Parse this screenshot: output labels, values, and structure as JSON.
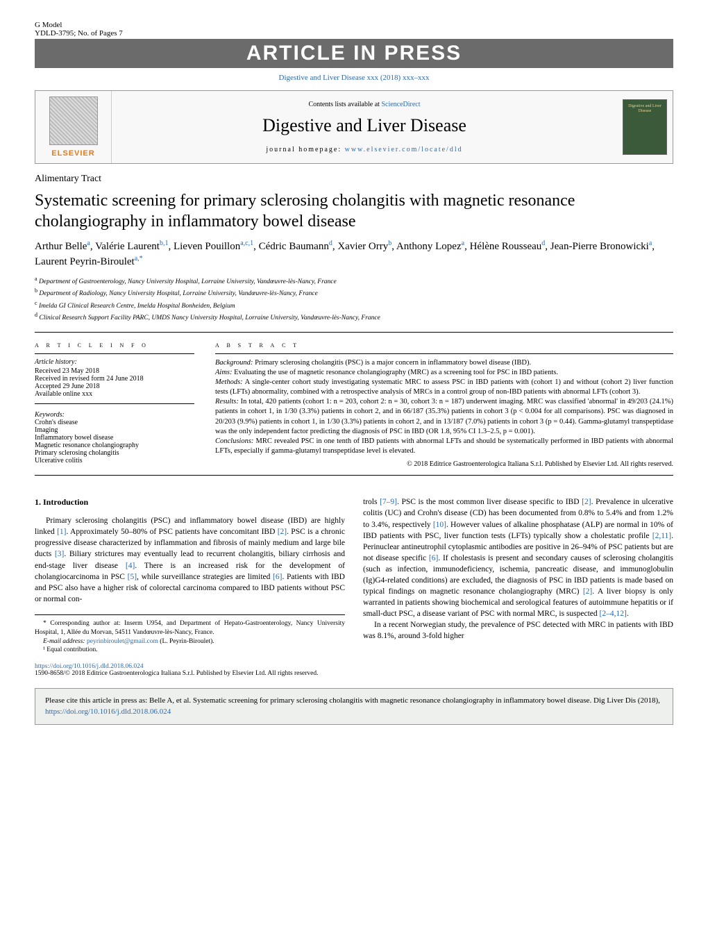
{
  "header": {
    "g_model": "G Model",
    "model_code": "YDLD-3795;   No. of Pages 7",
    "press_banner": "ARTICLE IN PRESS",
    "citation_link": "Digestive and Liver Disease xxx (2018) xxx–xxx",
    "contents_prefix": "Contents lists available at ",
    "science_direct": "ScienceDirect",
    "journal_name": "Digestive and Liver Disease",
    "homepage_label": "journal homepage: ",
    "homepage_url": "www.elsevier.com/locate/dld",
    "elsevier_label": "ELSEVIER",
    "cover_text": "Digestive and Liver Disease"
  },
  "article": {
    "section": "Alimentary Tract",
    "title": "Systematic screening for primary sclerosing cholangitis with magnetic resonance cholangiography in inflammatory bowel disease",
    "authors_html": "Arthur Belle<sup>a</sup>, Valérie Laurent<sup>b,1</sup>, Lieven Pouillon<sup>a,c,1</sup>, Cédric Baumann<sup>d</sup>, Xavier Orry<sup>b</sup>, Anthony Lopez<sup>a</sup>, Hélène Rousseau<sup>d</sup>, Jean-Pierre Bronowicki<sup>a</sup>, Laurent Peyrin-Biroulet<sup>a,*</sup>",
    "affiliations": [
      {
        "sup": "a",
        "text": "Department of Gastroenterology, Nancy University Hospital, Lorraine University, Vandœuvre-lès-Nancy, France"
      },
      {
        "sup": "b",
        "text": "Department of Radiology, Nancy University Hospital, Lorraine University, Vandœuvre-lès-Nancy, France"
      },
      {
        "sup": "c",
        "text": "Imelda GI Clinical Research Centre, Imelda Hospital Bonheiden, Belgium"
      },
      {
        "sup": "d",
        "text": "Clinical Research Support Facility PARC, UMDS Nancy University Hospital, Lorraine University, Vandœuvre-lès-Nancy, France"
      }
    ]
  },
  "info": {
    "header": "A R T I C L E   I N F O",
    "history_label": "Article history:",
    "history": [
      "Received 23 May 2018",
      "Received in revised form 24 June 2018",
      "Accepted 29 June 2018",
      "Available online xxx"
    ],
    "keywords_label": "Keywords:",
    "keywords": [
      "Crohn's disease",
      "Imaging",
      "Inflammatory bowel disease",
      "Magnetic resonance cholangiography",
      "Primary sclerosing cholangitis",
      "Ulcerative colitis"
    ]
  },
  "abstract": {
    "header": "A B S T R A C T",
    "background_label": "Background:",
    "background": " Primary sclerosing cholangitis (PSC) is a major concern in inflammatory bowel disease (IBD).",
    "aims_label": "Aims:",
    "aims": " Evaluating the use of magnetic resonance cholangiography (MRC) as a screening tool for PSC in IBD patients.",
    "methods_label": "Methods:",
    "methods": " A single-center cohort study investigating systematic MRC to assess PSC in IBD patients with (cohort 1) and without (cohort 2) liver function tests (LFTs) abnormality, combined with a retrospective analysis of MRCs in a control group of non-IBD patients with abnormal LFTs (cohort 3).",
    "results_label": "Results:",
    "results": " In total, 420 patients (cohort 1: n = 203, cohort 2: n = 30, cohort 3: n = 187) underwent imaging. MRC was classified 'abnormal' in 49/203 (24.1%) patients in cohort 1, in 1/30 (3.3%) patients in cohort 2, and in 66/187 (35.3%) patients in cohort 3 (p < 0.004 for all comparisons). PSC was diagnosed in 20/203 (9.9%) patients in cohort 1, in 1/30 (3.3%) patients in cohort 2, and in 13/187 (7.0%) patients in cohort 3 (p = 0.44). Gamma-glutamyl transpeptidase was the only independent factor predicting the diagnosis of PSC in IBD (OR 1.8, 95% CI 1.3–2.5, p = 0.001).",
    "conclusions_label": "Conclusions:",
    "conclusions": " MRC revealed PSC in one tenth of IBD patients with abnormal LFTs and should be systematically performed in IBD patients with abnormal LFTs, especially if gamma-glutamyl transpeptidase level is elevated.",
    "copyright": "© 2018 Editrice Gastroenterologica Italiana S.r.l. Published by Elsevier Ltd. All rights reserved."
  },
  "body": {
    "intro_title": "1.  Introduction",
    "col1_p1a": "Primary sclerosing cholangitis (PSC) and inflammatory bowel disease (IBD) are highly linked ",
    "ref1": "[1]",
    "col1_p1b": ". Approximately 50–80% of PSC patients have concomitant IBD ",
    "ref2": "[2]",
    "col1_p1c": ". PSC is a chronic progressive disease characterized by inflammation and fibrosis of mainly medium and large bile ducts ",
    "ref3": "[3]",
    "col1_p1d": ". Biliary strictures may eventually lead to recurrent cholangitis, biliary cirrhosis and end-stage liver disease ",
    "ref4": "[4]",
    "col1_p1e": ". There is an increased risk for the development of cholangiocarcinoma in PSC ",
    "ref5": "[5]",
    "col1_p1f": ", while surveillance strategies are limited ",
    "ref6": "[6]",
    "col1_p1g": ". Patients with IBD and PSC also have a higher risk of colorectal carcinoma compared to IBD patients without PSC or normal con-",
    "col2_p1a": "trols ",
    "ref79": "[7–9]",
    "col2_p1b": ". PSC is the most common liver disease specific to IBD ",
    "ref2b": "[2]",
    "col2_p1c": ". Prevalence in ulcerative colitis (UC) and Crohn's disease (CD) has been documented from 0.8% to 5.4% and from 1.2% to 3.4%, respectively ",
    "ref10": "[10]",
    "col2_p1d": ". However values of alkaline phosphatase (ALP) are normal in 10% of IBD patients with PSC, liver function tests (LFTs) typically show a cholestatic profile ",
    "ref211": "[2,11]",
    "col2_p1e": ". Perinuclear antineutrophil cytoplasmic antibodies are positive in 26–94% of PSC patients but are not disease specific ",
    "ref6b": "[6]",
    "col2_p1f": ". If cholestasis is present and secondary causes of sclerosing cholangitis (such as infection, immunodeficiency, ischemia, pancreatic disease, and immunoglobulin (Ig)G4-related conditions) are excluded, the diagnosis of PSC in IBD patients is made based on typical findings on magnetic resonance cholangiography (MRC) ",
    "ref2c": "[2]",
    "col2_p1g": ". A liver biopsy is only warranted in patients showing biochemical and serological features of autoimmune hepatitis or if small-duct PSC, a disease variant of PSC with normal MRC, is suspected ",
    "ref2412": "[2–4,12]",
    "col2_p1h": ".",
    "col2_p2": "In a recent Norwegian study, the prevalence of PSC detected with MRC in patients with IBD was 8.1%, around 3-fold higher"
  },
  "footnotes": {
    "corr": "* Corresponding author at: Inserm U954, and Department of Hepato-Gastroenterology, Nancy University Hospital, 1, Allée du Morvan, 54511 Vandœuvre-lès-Nancy, France.",
    "email_label": "E-mail address: ",
    "email": "peyrinbiroulet@gmail.com",
    "email_name": " (L. Peyrin-Biroulet).",
    "equal": "¹ Equal contribution."
  },
  "doi": {
    "url": "https://doi.org/10.1016/j.dld.2018.06.024",
    "issn_line": "1590-8658/© 2018 Editrice Gastroenterologica Italiana S.r.l. Published by Elsevier Ltd. All rights reserved."
  },
  "citebox": {
    "text_a": "Please cite this article in press as: Belle A, et al. Systematic screening for primary sclerosing cholangitis with magnetic resonance cholangiography in inflammatory bowel disease. Dig Liver Dis (2018), ",
    "link": "https://doi.org/10.1016/j.dld.2018.06.024"
  },
  "colors": {
    "link": "#2968b0",
    "banner_bg": "#6b6b6b",
    "elsevier_orange": "#e67817",
    "citebox_bg": "#eef0ee"
  }
}
